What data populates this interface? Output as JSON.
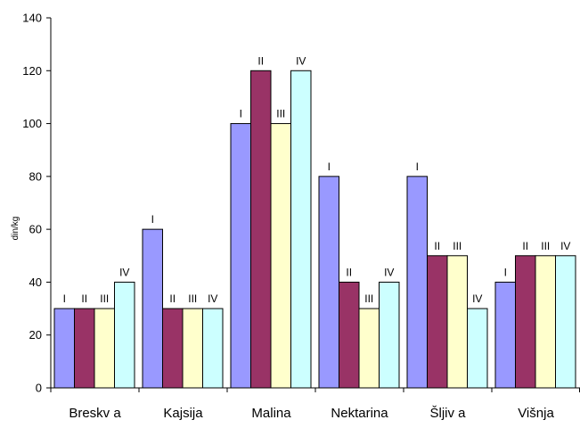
{
  "chart_data": {
    "type": "bar",
    "title": "",
    "xlabel": "",
    "ylabel": "din/kg",
    "ylim": [
      0,
      140
    ],
    "yticks": [
      0,
      20,
      40,
      60,
      80,
      100,
      120,
      140
    ],
    "grid": false,
    "legend": "none",
    "categories": [
      "Breskv a",
      "Kajsija",
      "Malina",
      "Nektarina",
      "Šljiv a",
      "Višnja"
    ],
    "series": [
      {
        "color": "#9999ff",
        "values": [
          30,
          60,
          100,
          80,
          80,
          40
        ],
        "labels": [
          "I",
          "I",
          "I",
          "I",
          "I",
          "I"
        ]
      },
      {
        "color": "#993366",
        "values": [
          30,
          30,
          120,
          40,
          50,
          50
        ],
        "labels": [
          "II",
          "II",
          "II",
          "II",
          "II",
          "II"
        ]
      },
      {
        "color": "#ffffcc",
        "values": [
          30,
          30,
          100,
          30,
          50,
          50
        ],
        "labels": [
          "III",
          "III",
          "III",
          "III",
          "III",
          "III"
        ]
      },
      {
        "color": "#ccffff",
        "values": [
          40,
          30,
          120,
          40,
          30,
          50
        ],
        "labels": [
          "IV",
          "IV",
          "IV",
          "IV",
          "IV",
          "IV"
        ]
      }
    ]
  }
}
